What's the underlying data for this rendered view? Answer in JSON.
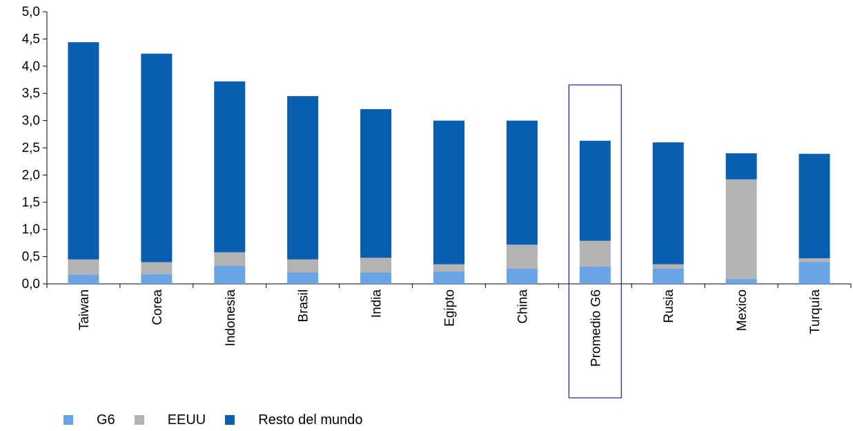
{
  "chart_data": {
    "type": "bar",
    "stacked": true,
    "title": "",
    "xlabel": "",
    "ylabel": "",
    "ylim": [
      0,
      5
    ],
    "yticks": [
      "0,0",
      "0,5",
      "1,0",
      "1,5",
      "2,0",
      "2,5",
      "3,0",
      "3,5",
      "4,0",
      "4,5",
      "5,0"
    ],
    "categories": [
      "Taiwan",
      "Corea",
      "Indonesia",
      "Brasil",
      "India",
      "Egipto",
      "China",
      "Promedio G6",
      "Rusia",
      "Mexico",
      "Turquía"
    ],
    "highlighted_category": "Promedio G6",
    "series": [
      {
        "name": "G6",
        "color": "#6aa5e3",
        "values": [
          0.17,
          0.18,
          0.33,
          0.21,
          0.21,
          0.23,
          0.28,
          0.32,
          0.28,
          0.09,
          0.4
        ]
      },
      {
        "name": "EEUU",
        "color": "#b3b3b3",
        "values": [
          0.28,
          0.22,
          0.25,
          0.24,
          0.27,
          0.13,
          0.44,
          0.47,
          0.08,
          1.83,
          0.07
        ]
      },
      {
        "name": "Resto del mundo",
        "color": "#0a5eb0",
        "values": [
          3.99,
          3.83,
          3.14,
          3.0,
          2.73,
          2.64,
          2.28,
          1.84,
          2.24,
          0.48,
          1.92
        ]
      }
    ],
    "grid": false,
    "legend_position": "bottom-left",
    "highlight_color": "#1f1f9e"
  }
}
